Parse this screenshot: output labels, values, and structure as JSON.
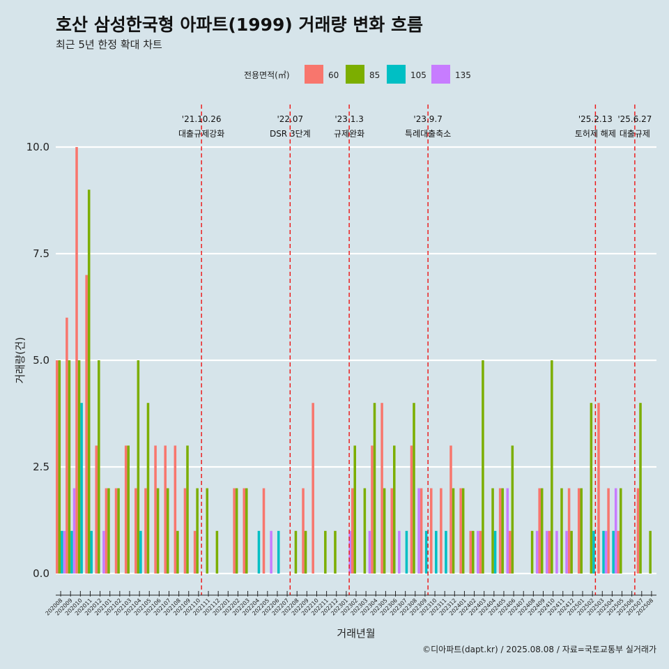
{
  "chart_data": {
    "type": "bar",
    "title": "호산 삼성한국형 아파트(1999) 거래량 변화 흐름",
    "subtitle": "최근 5년 한정 확대 차트",
    "xlabel": "거래년월",
    "ylabel": "거래량(건)",
    "ylim": [
      0,
      10.5
    ],
    "yticks": [
      "0.0",
      "2.5",
      "5.0",
      "7.5",
      "10.0"
    ],
    "grid": true,
    "legend": {
      "title": "전용면적(㎡)",
      "placement": "top"
    },
    "caption": "©디아파트(dapt.kr) / 2025.08.08 / 자료=국토교통부 실거래가",
    "categories": [
      "202008",
      "202009",
      "202010",
      "202011",
      "202012",
      "202101",
      "202102",
      "202103",
      "202104",
      "202105",
      "202106",
      "202107",
      "202108",
      "202109",
      "202110",
      "202111",
      "202112",
      "202201",
      "202202",
      "202203",
      "202204",
      "202205",
      "202206",
      "202207",
      "202208",
      "202209",
      "202210",
      "202211",
      "202212",
      "202301",
      "202302",
      "202303",
      "202304",
      "202305",
      "202306",
      "202307",
      "202308",
      "202309",
      "202310",
      "202311",
      "202312",
      "202401",
      "202402",
      "202403",
      "202404",
      "202405",
      "202406",
      "202407",
      "202408",
      "202409",
      "202410",
      "202411",
      "202412",
      "202501",
      "202502",
      "202503",
      "202504",
      "202505",
      "202506",
      "202507",
      "202508"
    ],
    "series": [
      {
        "name": "60",
        "color": "#f8766d",
        "values": [
          5,
          6,
          10,
          7,
          3,
          2,
          2,
          3,
          2,
          2,
          3,
          3,
          3,
          2,
          1,
          0,
          0,
          0,
          2,
          2,
          0,
          2,
          0,
          0,
          0,
          2,
          4,
          0,
          0,
          0,
          2,
          0,
          3,
          4,
          2,
          0,
          3,
          2,
          2,
          2,
          3,
          2,
          1,
          1,
          0,
          2,
          1,
          0,
          0,
          2,
          1,
          0,
          2,
          2,
          0,
          4,
          2,
          1,
          0,
          2,
          0
        ]
      },
      {
        "name": "85",
        "color": "#7cae00",
        "values": [
          5,
          5,
          5,
          9,
          5,
          2,
          2,
          3,
          5,
          4,
          2,
          2,
          1,
          3,
          2,
          2,
          1,
          0,
          2,
          2,
          0,
          0,
          0,
          0,
          1,
          1,
          0,
          1,
          1,
          0,
          3,
          2,
          4,
          2,
          3,
          0,
          4,
          0,
          0,
          0,
          2,
          2,
          1,
          5,
          2,
          2,
          3,
          0,
          1,
          2,
          5,
          2,
          1,
          2,
          4,
          0,
          0,
          2,
          0,
          4,
          1
        ]
      },
      {
        "name": "105",
        "color": "#00bfc4",
        "values": [
          1,
          1,
          4,
          1,
          0,
          0,
          0,
          0,
          1,
          0,
          0,
          0,
          0,
          0,
          0,
          0,
          0,
          0,
          0,
          0,
          1,
          0,
          1,
          0,
          0,
          0,
          0,
          0,
          0,
          0,
          0,
          0,
          0,
          0,
          0,
          1,
          0,
          1,
          1,
          1,
          0,
          0,
          0,
          0,
          1,
          0,
          0,
          0,
          0,
          0,
          0,
          0,
          0,
          0,
          1,
          1,
          1,
          0,
          0,
          0,
          0
        ]
      },
      {
        "name": "135",
        "color": "#c77cff",
        "values": [
          1,
          2,
          0,
          0,
          1,
          0,
          0,
          0,
          0,
          0,
          0,
          0,
          0,
          0,
          0,
          0,
          0,
          0,
          0,
          0,
          0,
          1,
          0,
          0,
          0,
          0,
          0,
          0,
          0,
          1,
          0,
          1,
          0,
          0,
          1,
          0,
          2,
          0,
          0,
          0,
          0,
          0,
          1,
          0,
          0,
          2,
          0,
          0,
          1,
          1,
          1,
          1,
          0,
          0,
          0,
          1,
          2,
          0,
          0,
          0,
          0
        ]
      }
    ],
    "events": [
      {
        "date": "'21.10.26",
        "label": "대출규제강화",
        "x_index": 14.8
      },
      {
        "date": "'22.07",
        "label": "DSR 3단계",
        "x_index": 23.8
      },
      {
        "date": "'23.1.3",
        "label": "규제완화",
        "x_index": 29.8
      },
      {
        "date": "'23.9.7",
        "label": "특례대출축소",
        "x_index": 37.8
      },
      {
        "date": "'25.2.13",
        "label": "토허제 해제",
        "x_index": 54.8
      },
      {
        "date": "'25.6.27",
        "label": "대출규제",
        "x_index": 58.8
      }
    ]
  }
}
